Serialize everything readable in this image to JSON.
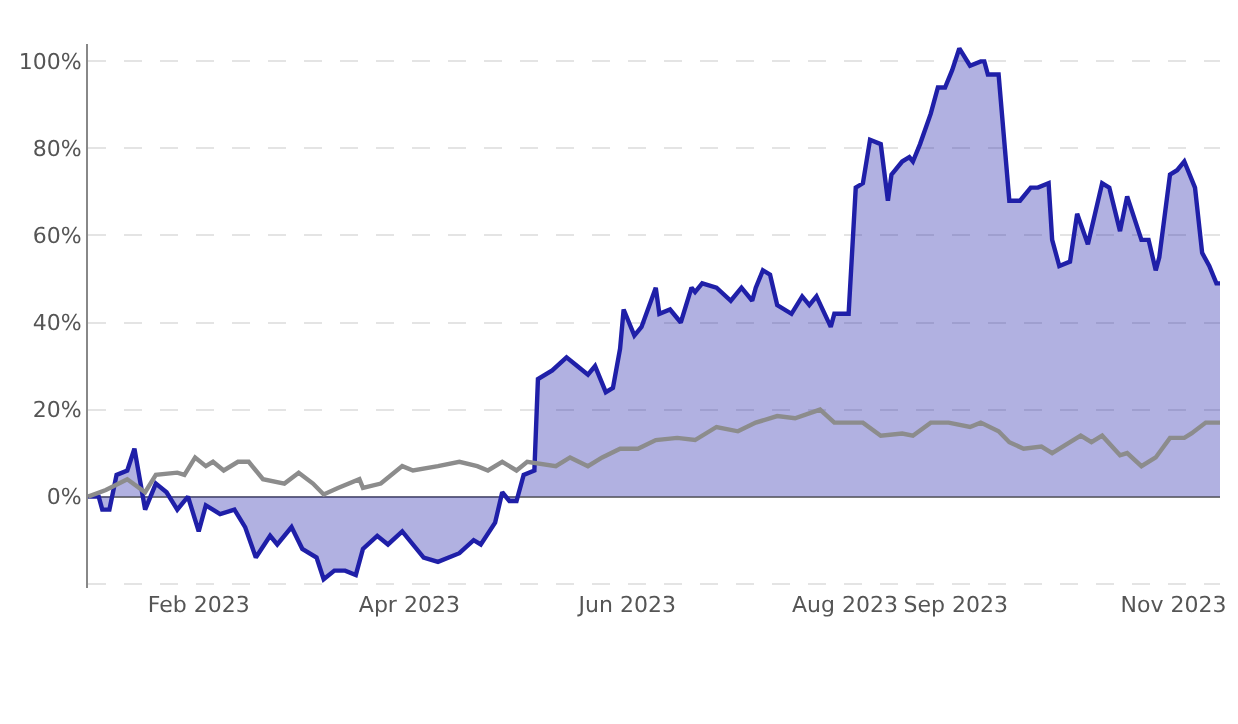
{
  "chart_data": {
    "type": "line",
    "xlim": [
      "2023-01-01",
      "2023-11-14"
    ],
    "xticks": [
      {
        "value": "2023-02-01",
        "label": "Feb 2023"
      },
      {
        "value": "2023-04-01",
        "label": "Apr 2023"
      },
      {
        "value": "2023-06-01",
        "label": "Jun 2023"
      },
      {
        "value": "2023-08-01",
        "label": "Aug 2023"
      },
      {
        "value": "2023-09-01",
        "label": "Sep 2023"
      },
      {
        "value": "2023-11-01",
        "label": "Nov 2023"
      }
    ],
    "ylim": [
      -21,
      104
    ],
    "yticks": [
      {
        "value": -20,
        "label": null
      },
      {
        "value": 0,
        "label": "0%"
      },
      {
        "value": 20,
        "label": "20%"
      },
      {
        "value": 40,
        "label": "40%"
      },
      {
        "value": 60,
        "label": "60%"
      },
      {
        "value": 80,
        "label": "80%"
      },
      {
        "value": 100,
        "label": "100%"
      }
    ],
    "grid": "y",
    "marker": "none",
    "line_style": "solid",
    "series": [
      {
        "type": "area",
        "color": "#1f1fa8",
        "x": [
          "2023-01-01",
          "2023-01-04",
          "2023-01-05",
          "2023-01-07",
          "2023-01-09",
          "2023-01-12",
          "2023-01-14",
          "2023-01-17",
          "2023-01-20",
          "2023-01-23",
          "2023-01-26",
          "2023-01-29",
          "2023-02-01",
          "2023-02-03",
          "2023-02-07",
          "2023-02-11",
          "2023-02-14",
          "2023-02-17",
          "2023-02-21",
          "2023-02-23",
          "2023-02-27",
          "2023-03-02",
          "2023-03-06",
          "2023-03-08",
          "2023-03-11",
          "2023-03-14",
          "2023-03-17",
          "2023-03-19",
          "2023-03-23",
          "2023-03-26",
          "2023-03-30",
          "2023-04-05",
          "2023-04-09",
          "2023-04-15",
          "2023-04-19",
          "2023-04-21",
          "2023-04-25",
          "2023-04-27",
          "2023-04-29",
          "2023-05-01",
          "2023-05-03",
          "2023-05-06",
          "2023-05-07",
          "2023-05-11",
          "2023-05-15",
          "2023-05-18",
          "2023-05-21",
          "2023-05-23",
          "2023-05-26",
          "2023-05-28",
          "2023-05-30",
          "2023-05-31",
          "2023-06-03",
          "2023-06-05",
          "2023-06-09",
          "2023-06-10",
          "2023-06-13",
          "2023-06-16",
          "2023-06-19",
          "2023-06-20",
          "2023-06-22",
          "2023-06-26",
          "2023-06-30",
          "2023-07-03",
          "2023-07-06",
          "2023-07-07",
          "2023-07-09",
          "2023-07-11",
          "2023-07-13",
          "2023-07-17",
          "2023-07-20",
          "2023-07-22",
          "2023-07-24",
          "2023-07-28",
          "2023-07-29",
          "2023-08-02",
          "2023-08-04",
          "2023-08-06",
          "2023-08-08",
          "2023-08-11",
          "2023-08-13",
          "2023-08-14",
          "2023-08-17",
          "2023-08-19",
          "2023-08-20",
          "2023-08-22",
          "2023-08-25",
          "2023-08-27",
          "2023-08-29",
          "2023-08-31",
          "2023-09-02",
          "2023-09-05",
          "2023-09-08",
          "2023-09-09",
          "2023-09-10",
          "2023-09-13",
          "2023-09-16",
          "2023-09-19",
          "2023-09-22",
          "2023-09-24",
          "2023-09-27",
          "2023-09-28",
          "2023-09-30",
          "2023-10-03",
          "2023-10-05",
          "2023-10-08",
          "2023-10-12",
          "2023-10-14",
          "2023-10-17",
          "2023-10-19",
          "2023-10-23",
          "2023-10-25",
          "2023-10-27",
          "2023-10-28",
          "2023-10-31",
          "2023-11-02",
          "2023-11-04",
          "2023-11-07",
          "2023-11-09",
          "2023-11-11",
          "2023-11-13",
          "2023-11-14"
        ],
        "values": [
          0,
          0,
          -3,
          -3,
          5,
          6,
          11,
          -3,
          3,
          1,
          -3,
          0,
          -8,
          -2,
          -4,
          -3,
          -7,
          -14,
          -9,
          -11,
          -7,
          -12,
          -14,
          -19,
          -17,
          -17,
          -18,
          -12,
          -9,
          -11,
          -8,
          -14,
          -15,
          -13,
          -10,
          -11,
          -6,
          1,
          -1,
          -1,
          5,
          6,
          27,
          29,
          32,
          30,
          28,
          30,
          24,
          25,
          34,
          43,
          37,
          39,
          48,
          42,
          43,
          40,
          48,
          47,
          49,
          48,
          45,
          48,
          45,
          48,
          52,
          51,
          44,
          42,
          46,
          44,
          46,
          39,
          42,
          42,
          71,
          72,
          82,
          81,
          68,
          74,
          77,
          78,
          77,
          81,
          88,
          94,
          94,
          98,
          103,
          99,
          100,
          100,
          97,
          97,
          68,
          68,
          71,
          71,
          72,
          59,
          53,
          54,
          65,
          58,
          72,
          71,
          61,
          69,
          59,
          59,
          52,
          55,
          74,
          75,
          77,
          71,
          56,
          53,
          49,
          49
        ]
      },
      {
        "color": "#8c8c8c",
        "x": [
          "2023-01-01",
          "2023-01-06",
          "2023-01-12",
          "2023-01-17",
          "2023-01-20",
          "2023-01-26",
          "2023-01-28",
          "2023-01-31",
          "2023-02-03",
          "2023-02-05",
          "2023-02-08",
          "2023-02-12",
          "2023-02-15",
          "2023-02-19",
          "2023-02-25",
          "2023-03-01",
          "2023-03-05",
          "2023-03-08",
          "2023-03-12",
          "2023-03-18",
          "2023-03-19",
          "2023-03-24",
          "2023-03-30",
          "2023-04-02",
          "2023-04-09",
          "2023-04-15",
          "2023-04-20",
          "2023-04-23",
          "2023-04-27",
          "2023-05-01",
          "2023-05-04",
          "2023-05-12",
          "2023-05-16",
          "2023-05-21",
          "2023-05-25",
          "2023-05-30",
          "2023-06-04",
          "2023-06-09",
          "2023-06-15",
          "2023-06-20",
          "2023-06-26",
          "2023-07-02",
          "2023-07-07",
          "2023-07-13",
          "2023-07-18",
          "2023-07-25",
          "2023-07-29",
          "2023-08-06",
          "2023-08-11",
          "2023-08-17",
          "2023-08-20",
          "2023-08-25",
          "2023-08-30",
          "2023-09-05",
          "2023-09-08",
          "2023-09-13",
          "2023-09-16",
          "2023-09-20",
          "2023-09-25",
          "2023-09-28",
          "2023-10-03",
          "2023-10-06",
          "2023-10-09",
          "2023-10-12",
          "2023-10-17",
          "2023-10-19",
          "2023-10-23",
          "2023-10-27",
          "2023-10-31",
          "2023-11-04",
          "2023-11-06",
          "2023-11-10",
          "2023-11-14"
        ],
        "values": [
          0,
          1.5,
          4,
          1,
          5,
          5.5,
          5,
          9,
          7,
          8,
          6,
          8,
          8,
          4,
          3,
          5.5,
          3,
          0.5,
          2,
          4,
          2,
          3,
          7,
          6,
          7,
          8,
          7,
          6,
          8,
          6,
          8,
          7,
          9,
          7,
          9,
          11,
          11,
          13,
          13.5,
          13,
          16,
          15,
          17,
          18.5,
          18,
          20,
          17,
          17,
          14,
          14.5,
          14,
          17,
          17,
          16,
          17,
          15,
          12.5,
          11,
          11.5,
          10,
          12.5,
          14,
          12.5,
          14,
          9.5,
          10,
          7,
          9,
          13.5,
          13.5,
          14.5,
          17,
          17
        ]
      }
    ]
  }
}
